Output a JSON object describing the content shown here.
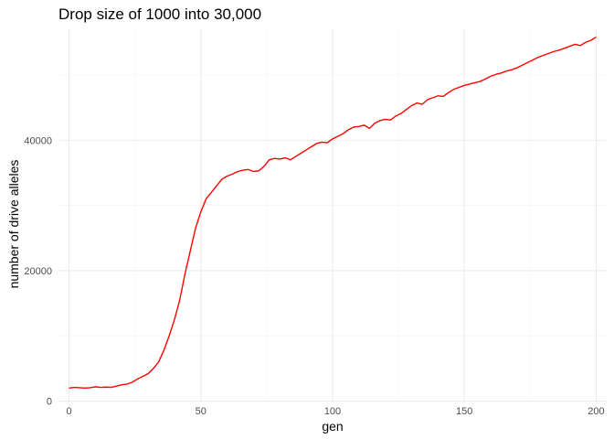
{
  "chart_data": {
    "type": "line",
    "title": "Drop size of 1000 into 30,000",
    "xlabel": "gen",
    "ylabel": "number of drive alleles",
    "xlim": [
      -4,
      204
    ],
    "ylim": [
      -200,
      57000
    ],
    "x_ticks": [
      0,
      50,
      100,
      150,
      200
    ],
    "x_tick_labels": [
      "0",
      "50",
      "100",
      "150",
      "200"
    ],
    "y_ticks": [
      0,
      20000,
      40000
    ],
    "y_tick_labels": [
      "0",
      "20000",
      "40000"
    ],
    "grid": true,
    "series": [
      {
        "color": "#ff0000",
        "x": [
          0,
          2,
          4,
          6,
          8,
          10,
          12,
          14,
          16,
          18,
          20,
          22,
          24,
          26,
          28,
          30,
          32,
          34,
          36,
          38,
          40,
          42,
          44,
          46,
          48,
          50,
          52,
          54,
          56,
          58,
          60,
          62,
          64,
          66,
          68,
          70,
          72,
          74,
          76,
          78,
          80,
          82,
          84,
          86,
          88,
          90,
          92,
          94,
          96,
          98,
          100,
          102,
          104,
          106,
          108,
          110,
          112,
          114,
          116,
          118,
          120,
          122,
          124,
          126,
          128,
          130,
          132,
          134,
          136,
          138,
          140,
          142,
          144,
          146,
          148,
          150,
          152,
          154,
          156,
          158,
          160,
          162,
          164,
          166,
          168,
          170,
          172,
          174,
          176,
          178,
          180,
          182,
          184,
          186,
          188,
          190,
          192,
          194,
          196,
          198,
          200
        ],
        "y": [
          2000,
          2100,
          2050,
          2000,
          2050,
          2200,
          2100,
          2150,
          2100,
          2300,
          2500,
          2600,
          2900,
          3400,
          3800,
          4200,
          5000,
          6000,
          7800,
          10000,
          12500,
          15500,
          19500,
          23000,
          26500,
          29000,
          31000,
          32000,
          33000,
          34000,
          34500,
          34800,
          35200,
          35400,
          35500,
          35200,
          35300,
          36000,
          37000,
          37200,
          37100,
          37300,
          37000,
          37500,
          38000,
          38500,
          39000,
          39500,
          39700,
          39600,
          40200,
          40600,
          41000,
          41600,
          42000,
          42100,
          42300,
          41800,
          42600,
          43000,
          43200,
          43100,
          43700,
          44100,
          44700,
          45300,
          45700,
          45500,
          46200,
          46500,
          46800,
          46700,
          47300,
          47800,
          48100,
          48400,
          48600,
          48800,
          49000,
          49400,
          49800,
          50100,
          50300,
          50600,
          50800,
          51100,
          51500,
          51900,
          52300,
          52700,
          53000,
          53300,
          53600,
          53800,
          54100,
          54400,
          54700,
          54500,
          55000,
          55300,
          55800
        ]
      }
    ]
  }
}
